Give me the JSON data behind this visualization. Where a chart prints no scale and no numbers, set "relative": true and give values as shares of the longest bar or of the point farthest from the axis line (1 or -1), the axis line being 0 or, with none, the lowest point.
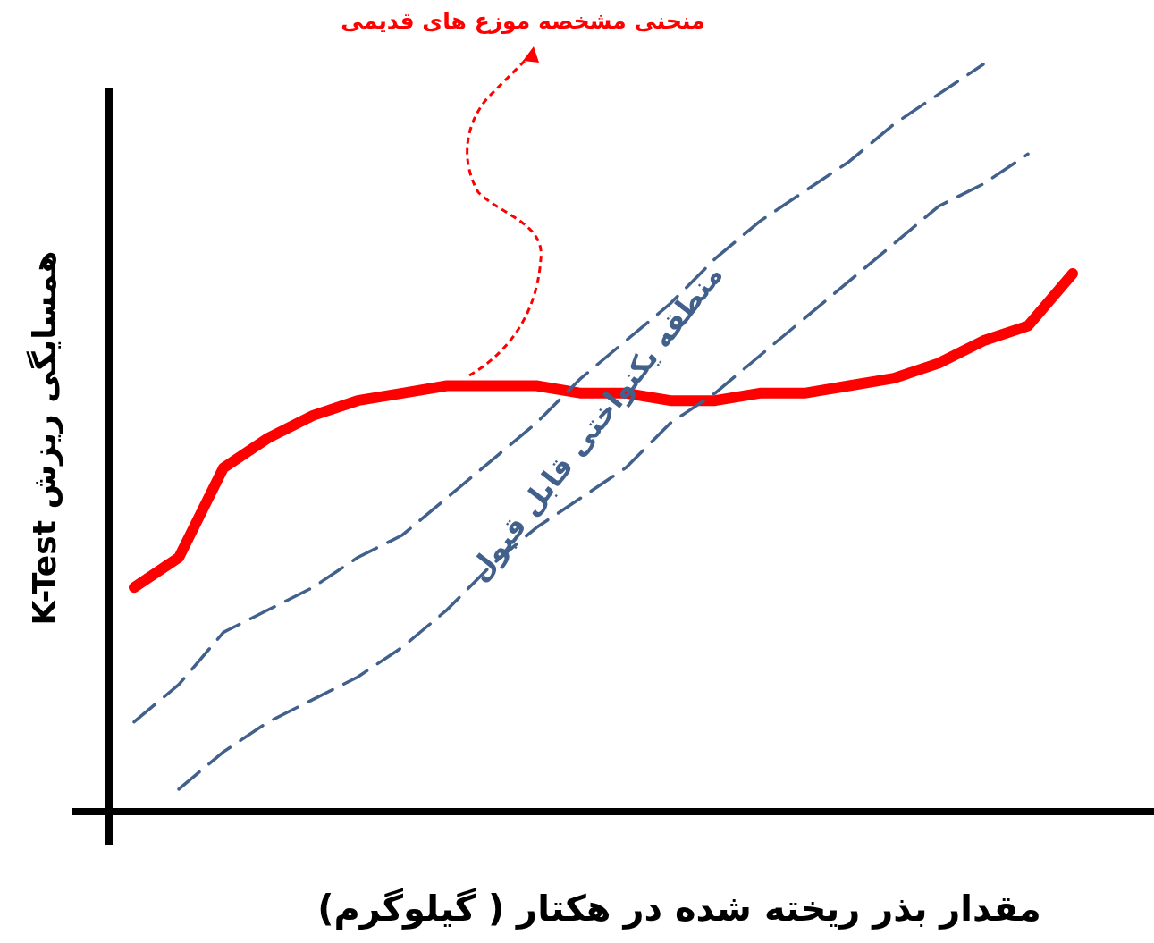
{
  "chart_data": {
    "type": "line",
    "relative": true,
    "xlabel": "مقدار بذر ریخته شده در هکتار ( گیلوگرم)",
    "ylabel": "همسایگی ریزش  K-Test",
    "categories": [
      null,
      null,
      null,
      null,
      null,
      null,
      null,
      null,
      null,
      null,
      null,
      null,
      null,
      null,
      null,
      null,
      null,
      null,
      null,
      null,
      null,
      null
    ],
    "series": [
      {
        "color": "#ff0000",
        "line_style": "solid",
        "values": [
          0.3,
          0.34,
          0.46,
          0.5,
          0.53,
          0.55,
          0.56,
          0.57,
          0.57,
          0.57,
          0.56,
          0.56,
          0.55,
          0.55,
          0.56,
          0.56,
          0.57,
          0.58,
          0.6,
          0.63,
          0.65,
          0.72
        ]
      },
      {
        "color": "#41618c",
        "line_style": "dashed",
        "values": [
          0.12,
          0.17,
          0.24,
          0.27,
          0.3,
          0.34,
          0.37,
          0.42,
          0.47,
          0.52,
          0.58,
          0.63,
          0.68,
          0.74,
          0.79,
          0.83,
          0.87,
          0.92,
          0.96,
          1.0,
          null,
          null
        ]
      },
      {
        "color": "#41618c",
        "line_style": "dashed",
        "values": [
          null,
          0.03,
          0.08,
          0.12,
          0.15,
          0.18,
          0.22,
          0.27,
          0.33,
          0.38,
          0.42,
          0.46,
          0.52,
          0.56,
          0.61,
          0.66,
          0.71,
          0.76,
          0.81,
          0.84,
          0.88,
          null
        ]
      }
    ],
    "annotations": [
      "منحنی مشخصه موزع های قدیمی",
      "منطقه یکنواختی قابل قبول"
    ],
    "marker": "none"
  }
}
